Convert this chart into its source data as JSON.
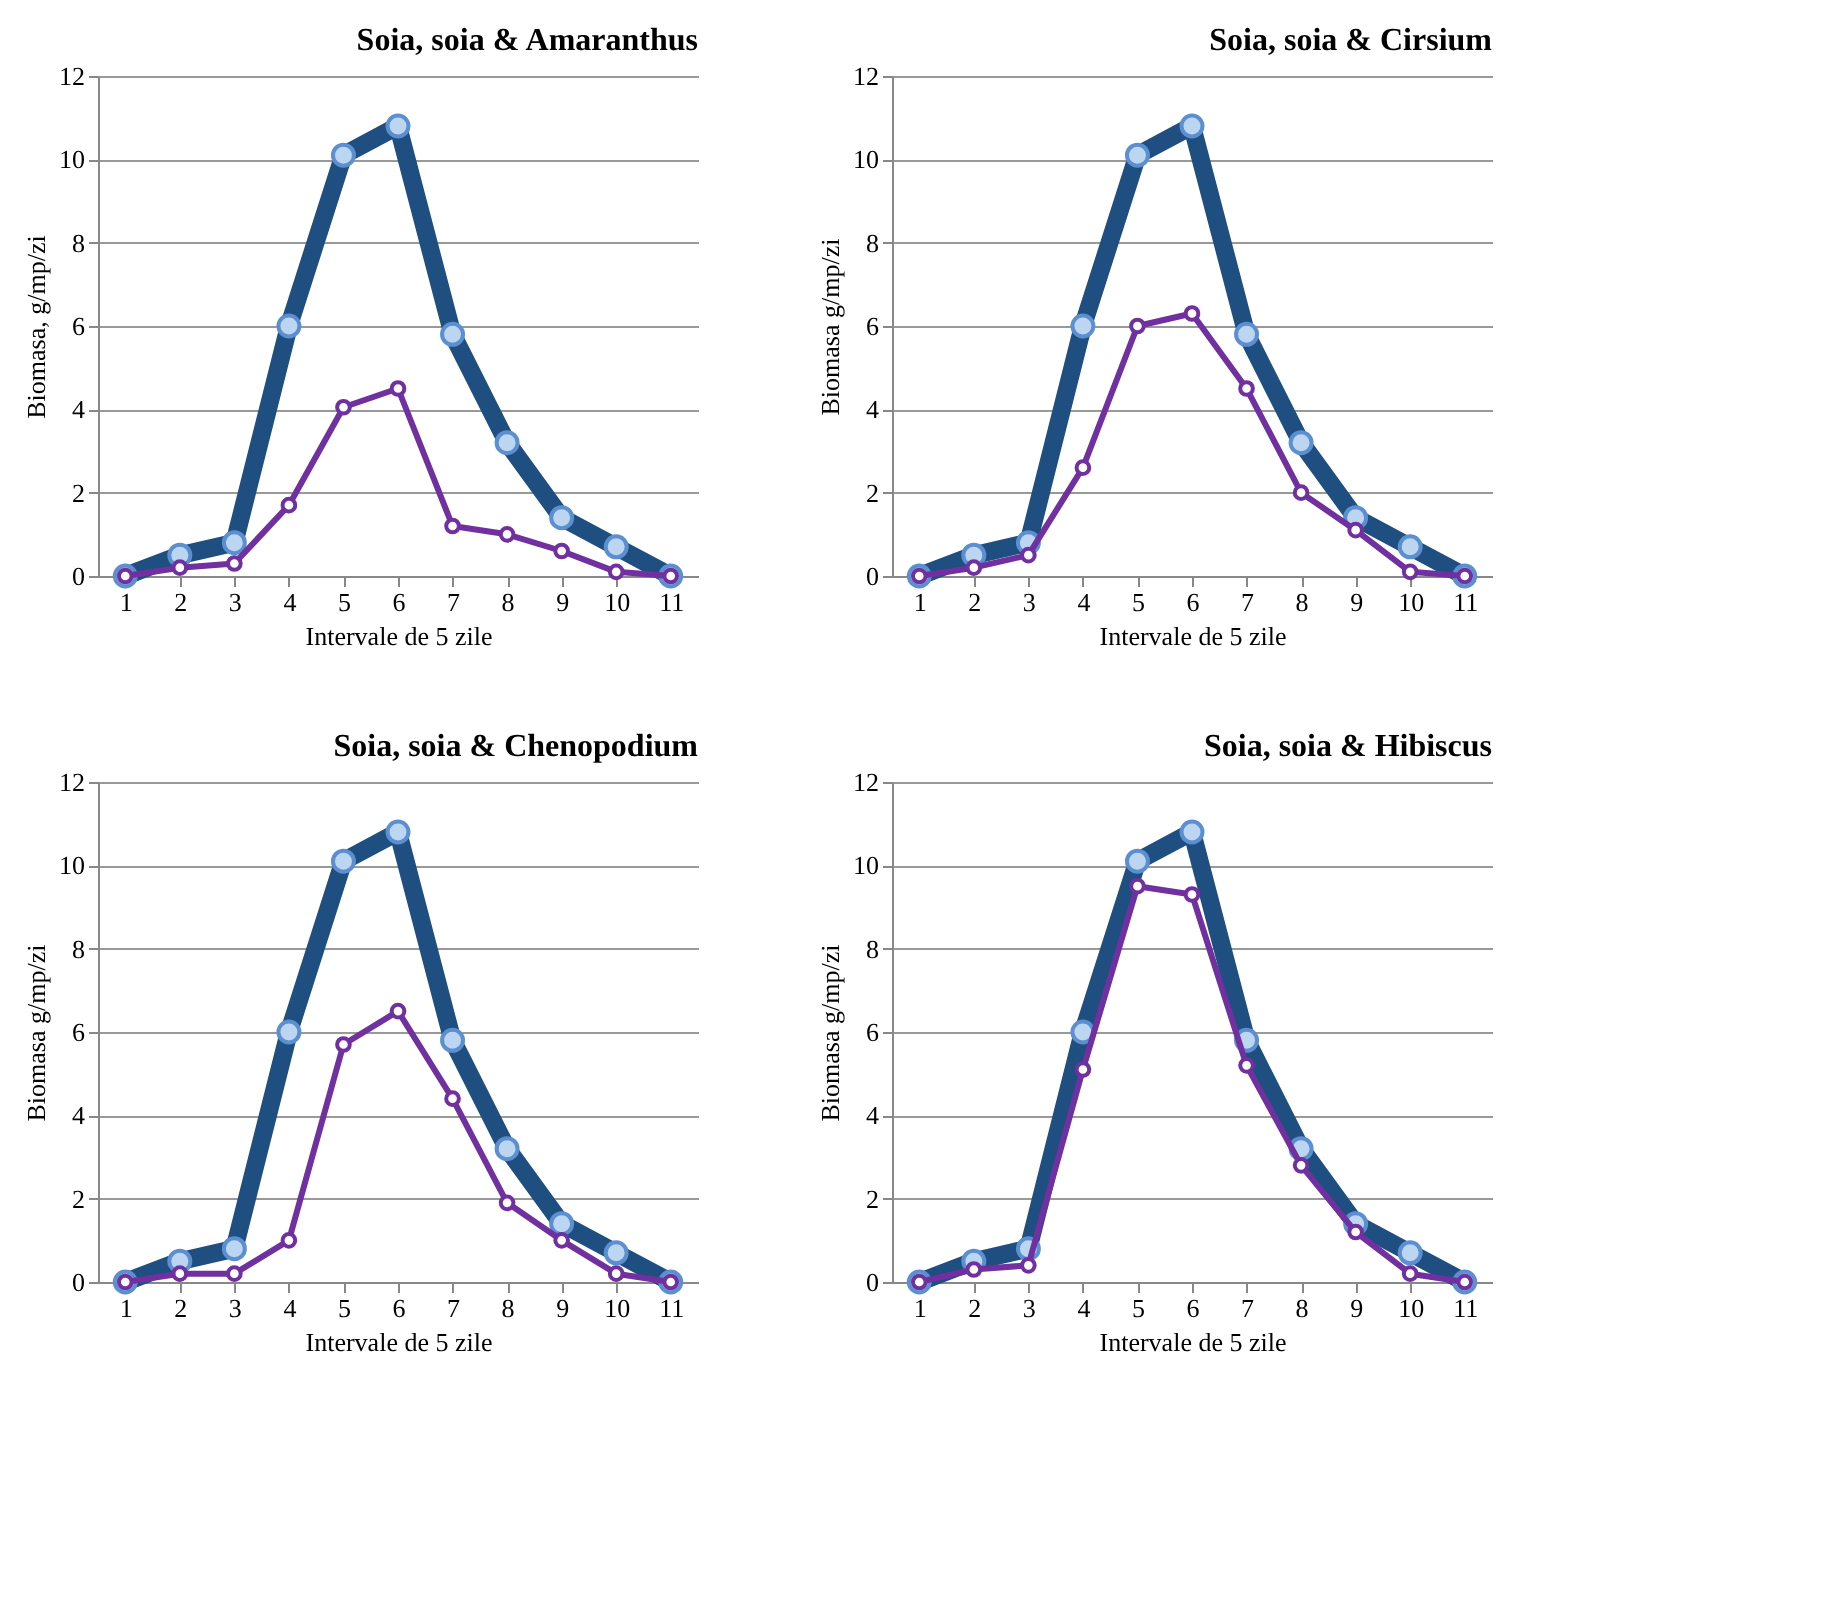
{
  "chart_data": [
    {
      "type": "line",
      "title": "Soia, soia & Amaranthus",
      "xlabel": "Intervale de 5 zile",
      "ylabel": "Biomasa, g/mp/zi",
      "categories": [
        "1",
        "2",
        "3",
        "4",
        "5",
        "6",
        "7",
        "8",
        "9",
        "10",
        "11"
      ],
      "ylim": [
        0,
        12
      ],
      "yticks": [
        0,
        2,
        4,
        6,
        8,
        10,
        12
      ],
      "grid": "y",
      "marker": "circle",
      "series": [
        {
          "color": "#1f4e80",
          "values": [
            0,
            0.5,
            0.8,
            6,
            10.1,
            10.8,
            5.8,
            3.2,
            1.4,
            0.7,
            0
          ]
        },
        {
          "color": "#7030a0",
          "values": [
            0,
            0.2,
            0.3,
            1.7,
            4.05,
            4.5,
            1.2,
            1.0,
            0.6,
            0.1,
            0
          ]
        }
      ]
    },
    {
      "type": "line",
      "title": "Soia, soia & Cirsium",
      "xlabel": "Intervale de 5 zile",
      "ylabel": "Biomasa g/mp/zi",
      "categories": [
        "1",
        "2",
        "3",
        "4",
        "5",
        "6",
        "7",
        "8",
        "9",
        "10",
        "11"
      ],
      "ylim": [
        0,
        12
      ],
      "yticks": [
        0,
        2,
        4,
        6,
        8,
        10,
        12
      ],
      "grid": "y",
      "marker": "circle",
      "series": [
        {
          "color": "#1f4e80",
          "values": [
            0,
            0.5,
            0.8,
            6,
            10.1,
            10.8,
            5.8,
            3.2,
            1.4,
            0.7,
            0
          ]
        },
        {
          "color": "#7030a0",
          "values": [
            0,
            0.2,
            0.5,
            2.6,
            6.0,
            6.3,
            4.5,
            2.0,
            1.1,
            0.1,
            0
          ]
        }
      ]
    },
    {
      "type": "line",
      "title": "Soia, soia & Chenopodium",
      "xlabel": "Intervale de 5 zile",
      "ylabel": "Biomasa g/mp/zi",
      "categories": [
        "1",
        "2",
        "3",
        "4",
        "5",
        "6",
        "7",
        "8",
        "9",
        "10",
        "11"
      ],
      "ylim": [
        0,
        12
      ],
      "yticks": [
        0,
        2,
        4,
        6,
        8,
        10,
        12
      ],
      "grid": "y",
      "marker": "circle",
      "series": [
        {
          "color": "#1f4e80",
          "values": [
            0,
            0.5,
            0.8,
            6,
            10.1,
            10.8,
            5.8,
            3.2,
            1.4,
            0.7,
            0
          ]
        },
        {
          "color": "#7030a0",
          "values": [
            0,
            0.2,
            0.2,
            1.0,
            5.7,
            6.5,
            4.4,
            1.9,
            1.0,
            0.2,
            0
          ]
        }
      ]
    },
    {
      "type": "line",
      "title": "Soia, soia & Hibiscus",
      "xlabel": "Intervale de 5 zile",
      "ylabel": "Biomasa g/mp/zi",
      "categories": [
        "1",
        "2",
        "3",
        "4",
        "5",
        "6",
        "7",
        "8",
        "9",
        "10",
        "11"
      ],
      "ylim": [
        0,
        12
      ],
      "yticks": [
        0,
        2,
        4,
        6,
        8,
        10,
        12
      ],
      "grid": "y",
      "marker": "circle",
      "series": [
        {
          "color": "#1f4e80",
          "values": [
            0,
            0.5,
            0.8,
            6,
            10.1,
            10.8,
            5.8,
            3.2,
            1.4,
            0.7,
            0
          ]
        },
        {
          "color": "#7030a0",
          "values": [
            0,
            0.3,
            0.4,
            5.1,
            9.5,
            9.3,
            5.2,
            2.8,
            1.2,
            0.2,
            0
          ]
        }
      ]
    }
  ]
}
